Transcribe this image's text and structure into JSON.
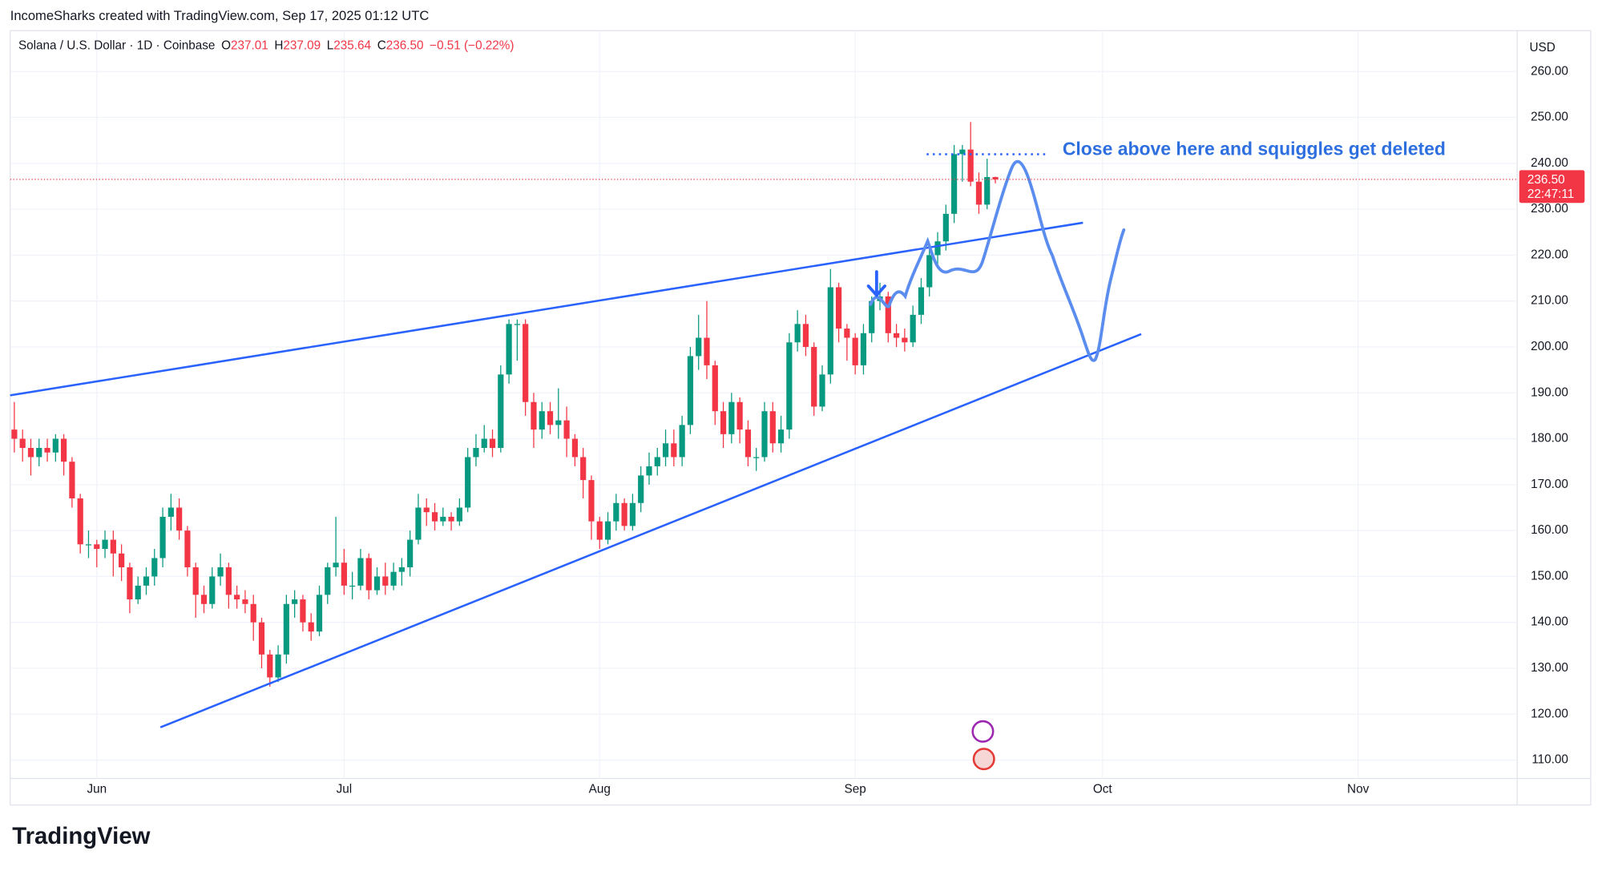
{
  "watermark": "IncomeSharks created with TradingView.com, Sep 17, 2025 01:12 UTC",
  "logo": "TradingView",
  "chart_data": {
    "type": "candlestick",
    "header": {
      "symbol": "Solana / U.S. Dollar · 1D · Coinbase",
      "fields": [
        {
          "label": "O",
          "value": "237.01"
        },
        {
          "label": "H",
          "value": "237.09"
        },
        {
          "label": "L",
          "value": "235.64"
        },
        {
          "label": "C",
          "value": "236.50"
        }
      ],
      "change": "−0.51 (−0.22%)"
    },
    "currency": "USD",
    "annotation": "Close above here and squiggles get deleted",
    "up_color": "#089981",
    "down_color": "#f23645",
    "grid": true,
    "last_price": {
      "value": 236.5,
      "label": "236.50",
      "countdown": "22:47:11"
    },
    "open": [
      182,
      180,
      178,
      176,
      178,
      177,
      180,
      175,
      167,
      157,
      157,
      156,
      158,
      155,
      152,
      145,
      148,
      150,
      154,
      163,
      165,
      160,
      152,
      146,
      144,
      150,
      152,
      146,
      145,
      144,
      140,
      133,
      128,
      133,
      144,
      145,
      140,
      138,
      146,
      152,
      153,
      148,
      148,
      154,
      147,
      150,
      148,
      151,
      152,
      158,
      165,
      164,
      162,
      163,
      162,
      165,
      176,
      178,
      180,
      178,
      194,
      205,
      205,
      188,
      182,
      186,
      183,
      184,
      180,
      176,
      171,
      162,
      158,
      162,
      166,
      161,
      166,
      172,
      174,
      176,
      179,
      176,
      183,
      198,
      202,
      196,
      186,
      181,
      188,
      182,
      176,
      176,
      186,
      179,
      182,
      201,
      205,
      200,
      187,
      194,
      213,
      204,
      202,
      196,
      203,
      210,
      211,
      203,
      202,
      201,
      207,
      213,
      220,
      223,
      229,
      242,
      243,
      236,
      231,
      237.01
    ],
    "high": [
      188,
      182,
      180,
      180,
      180,
      181,
      181,
      176,
      168,
      160,
      158,
      160,
      160,
      157,
      153,
      150,
      152,
      156,
      165,
      168,
      167,
      161,
      153,
      148,
      152,
      155,
      153,
      148,
      147,
      146,
      141,
      134,
      135,
      146,
      147,
      146,
      142,
      148,
      153,
      163,
      156,
      151,
      156,
      155,
      152,
      153,
      153,
      154,
      160,
      168,
      167,
      166,
      165,
      164,
      167,
      178,
      181,
      183,
      182,
      196,
      206,
      206,
      206,
      190,
      188,
      188,
      191,
      187,
      181,
      178,
      172,
      163,
      164,
      168,
      167,
      168,
      174,
      177,
      178,
      182,
      182,
      185,
      200,
      207,
      210,
      197,
      188,
      190,
      189,
      184,
      178,
      188,
      188,
      185,
      203,
      208,
      207,
      201,
      196,
      217,
      214,
      205,
      203,
      205,
      211,
      214,
      212,
      205,
      204,
      209,
      215,
      222,
      225,
      231,
      244,
      244,
      249,
      238,
      241,
      237.09
    ],
    "low": [
      177,
      175,
      172,
      174,
      175,
      175,
      172,
      165,
      155,
      154,
      152,
      154,
      150,
      149,
      142,
      144,
      146,
      148,
      152,
      160,
      158,
      150,
      141,
      142,
      143,
      148,
      143,
      143,
      142,
      136,
      130,
      126,
      127,
      131,
      141,
      138,
      136,
      137,
      144,
      150,
      146,
      145,
      147,
      145,
      146,
      146,
      147,
      148,
      150,
      157,
      161,
      160,
      161,
      160,
      161,
      164,
      174,
      177,
      176,
      177,
      192,
      197,
      185,
      178,
      180,
      181,
      180,
      176,
      174,
      167,
      158,
      156,
      157,
      160,
      160,
      160,
      164,
      170,
      172,
      174,
      174,
      174,
      181,
      195,
      193,
      183,
      178,
      179,
      179,
      174,
      173,
      175,
      177,
      177,
      180,
      199,
      198,
      185,
      186,
      192,
      201,
      197,
      194,
      194,
      201,
      208,
      201,
      200,
      199,
      200,
      205,
      211,
      218,
      221,
      227,
      236,
      235,
      229,
      230,
      235.64
    ],
    "close": [
      180,
      178,
      176,
      178,
      177,
      180,
      175,
      167,
      157,
      157,
      156,
      158,
      155,
      152,
      145,
      148,
      150,
      154,
      163,
      165,
      160,
      152,
      146,
      144,
      150,
      152,
      146,
      145,
      144,
      140,
      133,
      128,
      133,
      144,
      145,
      140,
      138,
      146,
      152,
      153,
      148,
      148,
      154,
      147,
      150,
      148,
      151,
      152,
      158,
      165,
      164,
      162,
      163,
      162,
      165,
      176,
      178,
      180,
      178,
      194,
      205,
      205,
      188,
      182,
      186,
      183,
      184,
      180,
      176,
      171,
      162,
      158,
      162,
      166,
      161,
      166,
      172,
      174,
      176,
      179,
      176,
      183,
      198,
      202,
      196,
      186,
      181,
      188,
      182,
      176,
      176,
      186,
      179,
      182,
      201,
      205,
      200,
      187,
      194,
      213,
      204,
      202,
      196,
      203,
      210,
      211,
      203,
      202,
      201,
      207,
      213,
      220,
      223,
      229,
      242,
      243,
      236,
      231,
      237.01,
      236.5
    ],
    "xlim": [
      -0.5,
      182.3
    ],
    "xticks": [
      {
        "value": 10,
        "label": "Jun"
      },
      {
        "value": 40,
        "label": "Jul"
      },
      {
        "value": 71,
        "label": "Aug"
      },
      {
        "value": 102,
        "label": "Sep"
      },
      {
        "value": 132,
        "label": "Oct"
      },
      {
        "value": 163,
        "label": "Nov"
      }
    ],
    "ylim": [
      106,
      268.9
    ],
    "yticks": [
      {
        "value": 110,
        "label": "110.00"
      },
      {
        "value": 120,
        "label": "120.00"
      },
      {
        "value": 130,
        "label": "130.00"
      },
      {
        "value": 140,
        "label": "140.00"
      },
      {
        "value": 150,
        "label": "150.00"
      },
      {
        "value": 160,
        "label": "160.00"
      },
      {
        "value": 170,
        "label": "170.00"
      },
      {
        "value": 180,
        "label": "180.00"
      },
      {
        "value": 190,
        "label": "190.00"
      },
      {
        "value": 200,
        "label": "200.00"
      },
      {
        "value": 210,
        "label": "210.00"
      },
      {
        "value": 220,
        "label": "220.00"
      },
      {
        "value": 230,
        "label": "230.00"
      },
      {
        "value": 240,
        "label": "240.00"
      },
      {
        "value": 250,
        "label": "250.00"
      },
      {
        "value": 260,
        "label": "260.00"
      }
    ]
  }
}
